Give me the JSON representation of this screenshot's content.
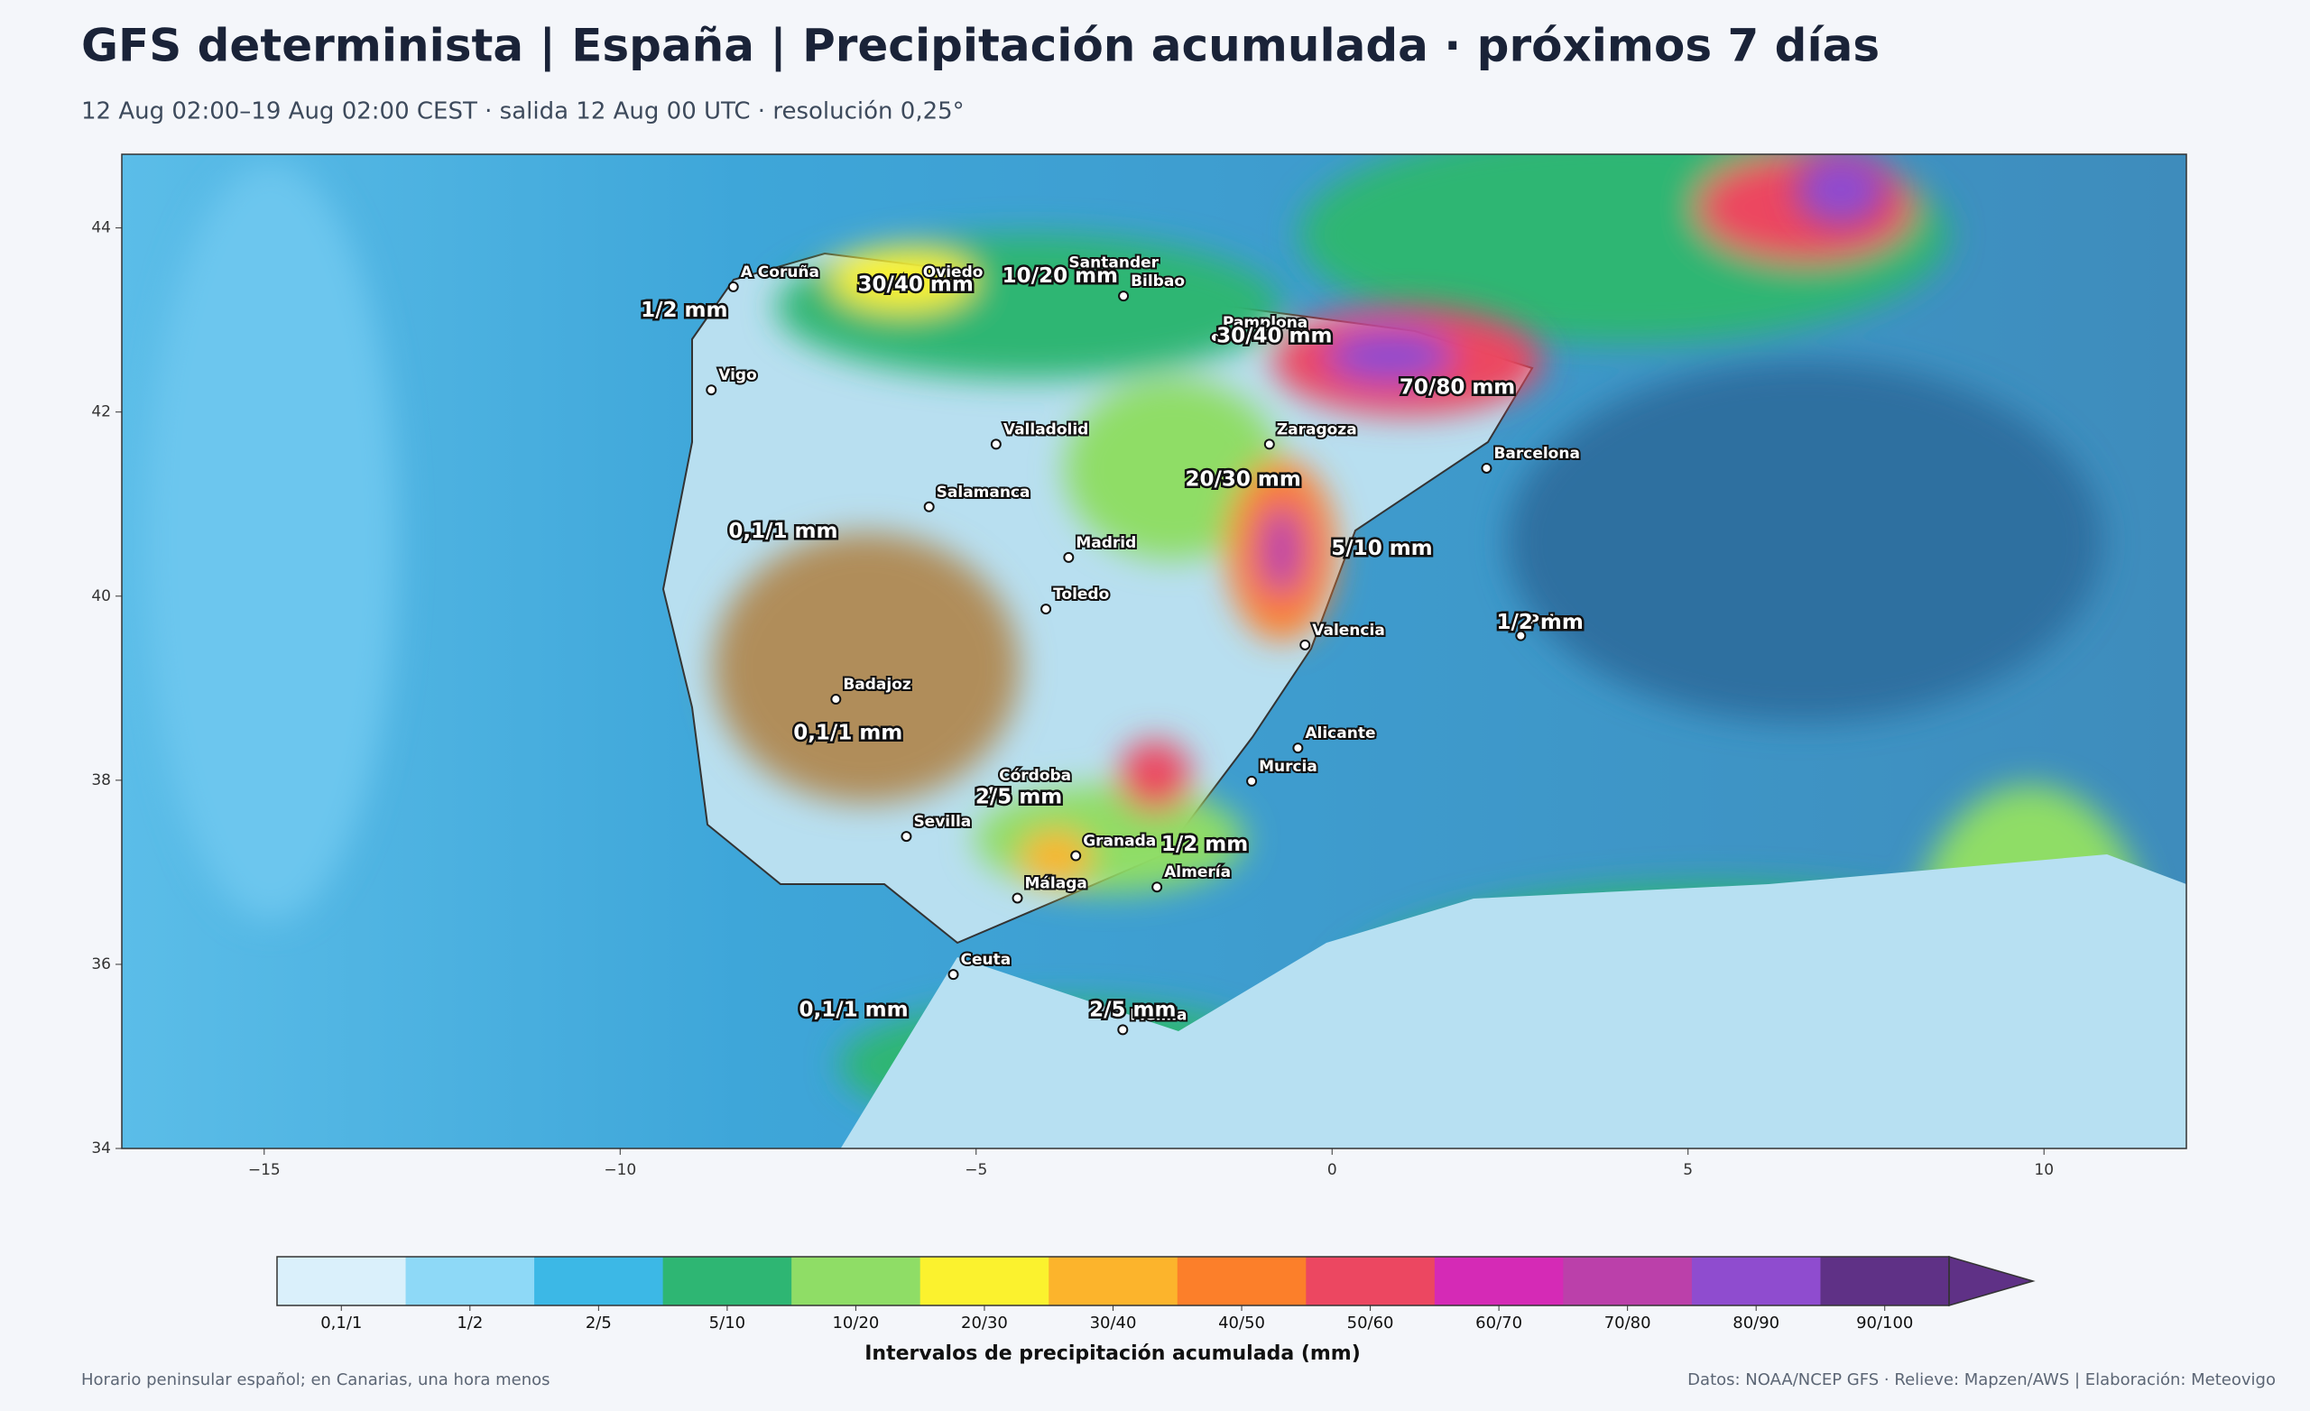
{
  "header": {
    "title": "GFS determinista | España | Precipitación acumulada · próximos 7 días",
    "subtitle": "12 Aug 02:00–19 Aug 02:00 CEST · salida 12 Aug 00 UTC · resolución 0,25°"
  },
  "map": {
    "xlim": [
      -17,
      12
    ],
    "ylim": [
      34,
      44.8
    ],
    "xticks": [
      {
        "value": -15,
        "label": "−15"
      },
      {
        "value": -10,
        "label": "−10"
      },
      {
        "value": -5,
        "label": "−5"
      },
      0,
      5,
      10
    ],
    "yticks": [
      34,
      36,
      38,
      40,
      42,
      44
    ],
    "cities": [
      {
        "name": "A Coruña",
        "lon": -8.41,
        "lat": 43.36
      },
      {
        "name": "Oviedo",
        "lon": -5.85,
        "lat": 43.36
      },
      {
        "name": "Santander",
        "lon": -3.8,
        "lat": 43.46
      },
      {
        "name": "Bilbao",
        "lon": -2.93,
        "lat": 43.26
      },
      {
        "name": "Pamplona",
        "lon": -1.64,
        "lat": 42.81
      },
      {
        "name": "Vigo",
        "lon": -8.72,
        "lat": 42.24
      },
      {
        "name": "Valladolid",
        "lon": -4.72,
        "lat": 41.65
      },
      {
        "name": "Zaragoza",
        "lon": -0.88,
        "lat": 41.65
      },
      {
        "name": "Barcelona",
        "lon": 2.17,
        "lat": 41.39
      },
      {
        "name": "Salamanca",
        "lon": -5.66,
        "lat": 40.97
      },
      {
        "name": "Madrid",
        "lon": -3.7,
        "lat": 40.42
      },
      {
        "name": "Toledo",
        "lon": -4.02,
        "lat": 39.86
      },
      {
        "name": "Valencia",
        "lon": -0.38,
        "lat": 39.47
      },
      {
        "name": "Palma",
        "lon": 2.65,
        "lat": 39.57
      },
      {
        "name": "Badajoz",
        "lon": -6.97,
        "lat": 38.88
      },
      {
        "name": "Córdoba",
        "lon": -4.78,
        "lat": 37.89
      },
      {
        "name": "Murcia",
        "lon": -1.13,
        "lat": 37.99
      },
      {
        "name": "Alicante",
        "lon": -0.48,
        "lat": 38.35
      },
      {
        "name": "Sevilla",
        "lon": -5.98,
        "lat": 37.39
      },
      {
        "name": "Granada",
        "lon": -3.6,
        "lat": 37.18
      },
      {
        "name": "Almería",
        "lon": -2.46,
        "lat": 36.84
      },
      {
        "name": "Málaga",
        "lon": -4.42,
        "lat": 36.72
      },
      {
        "name": "Ceuta",
        "lon": -5.32,
        "lat": 35.89
      },
      {
        "name": "Melilla",
        "lon": -2.94,
        "lat": 35.29
      }
    ],
    "labels": [
      {
        "text": "1/2 mm",
        "lon": -9.1,
        "lat": 43.1
      },
      {
        "text": "30/40 mm",
        "lon": -5.85,
        "lat": 43.38
      },
      {
        "text": "10/20 mm",
        "lon": -3.82,
        "lat": 43.47
      },
      {
        "text": "30/40 mm",
        "lon": -0.81,
        "lat": 42.82
      },
      {
        "text": "70/80 mm",
        "lon": 1.76,
        "lat": 42.26
      },
      {
        "text": "20/30 mm",
        "lon": -1.25,
        "lat": 41.26
      },
      {
        "text": "0,1/1 mm",
        "lon": -7.71,
        "lat": 40.7
      },
      {
        "text": "5/10 mm",
        "lon": 0.7,
        "lat": 40.51
      },
      {
        "text": "1/2 mm",
        "lon": 2.92,
        "lat": 39.71
      },
      {
        "text": "0,1/1 mm",
        "lon": -6.8,
        "lat": 38.51
      },
      {
        "text": "2/5 mm",
        "lon": -4.4,
        "lat": 37.81
      },
      {
        "text": "1/2 mm",
        "lon": -1.79,
        "lat": 37.3
      },
      {
        "text": "0,1/1 mm",
        "lon": -6.72,
        "lat": 35.5
      },
      {
        "text": "2/5 mm",
        "lon": -2.8,
        "lat": 35.5
      }
    ]
  },
  "colorbar": {
    "title": "Intervalos de precipitación acumulada (mm)",
    "bins": [
      {
        "label": "0,1/1",
        "color": "#daf0fb"
      },
      {
        "label": "1/2",
        "color": "#8ed9f7"
      },
      {
        "label": "2/5",
        "color": "#3cb8e6"
      },
      {
        "label": "5/10",
        "color": "#2eb673"
      },
      {
        "label": "10/20",
        "color": "#8fdd66"
      },
      {
        "label": "20/30",
        "color": "#fbf22e"
      },
      {
        "label": "30/40",
        "color": "#fcb42c"
      },
      {
        "label": "40/50",
        "color": "#fc7f2a"
      },
      {
        "label": "50/60",
        "color": "#ec4761"
      },
      {
        "label": "60/70",
        "color": "#d52ab6"
      },
      {
        "label": "70/80",
        "color": "#bb40aa"
      },
      {
        "label": "80/90",
        "color": "#8f4ccf"
      },
      {
        "label": "90/100",
        "color": "#5f3186"
      }
    ]
  },
  "footer": {
    "left": "Horario peninsular español; en Canarias, una hora menos",
    "right": "Datos: NOAA/NCEP GFS · Relieve: Mapzen/AWS | Elaboración: Meteovigo"
  }
}
